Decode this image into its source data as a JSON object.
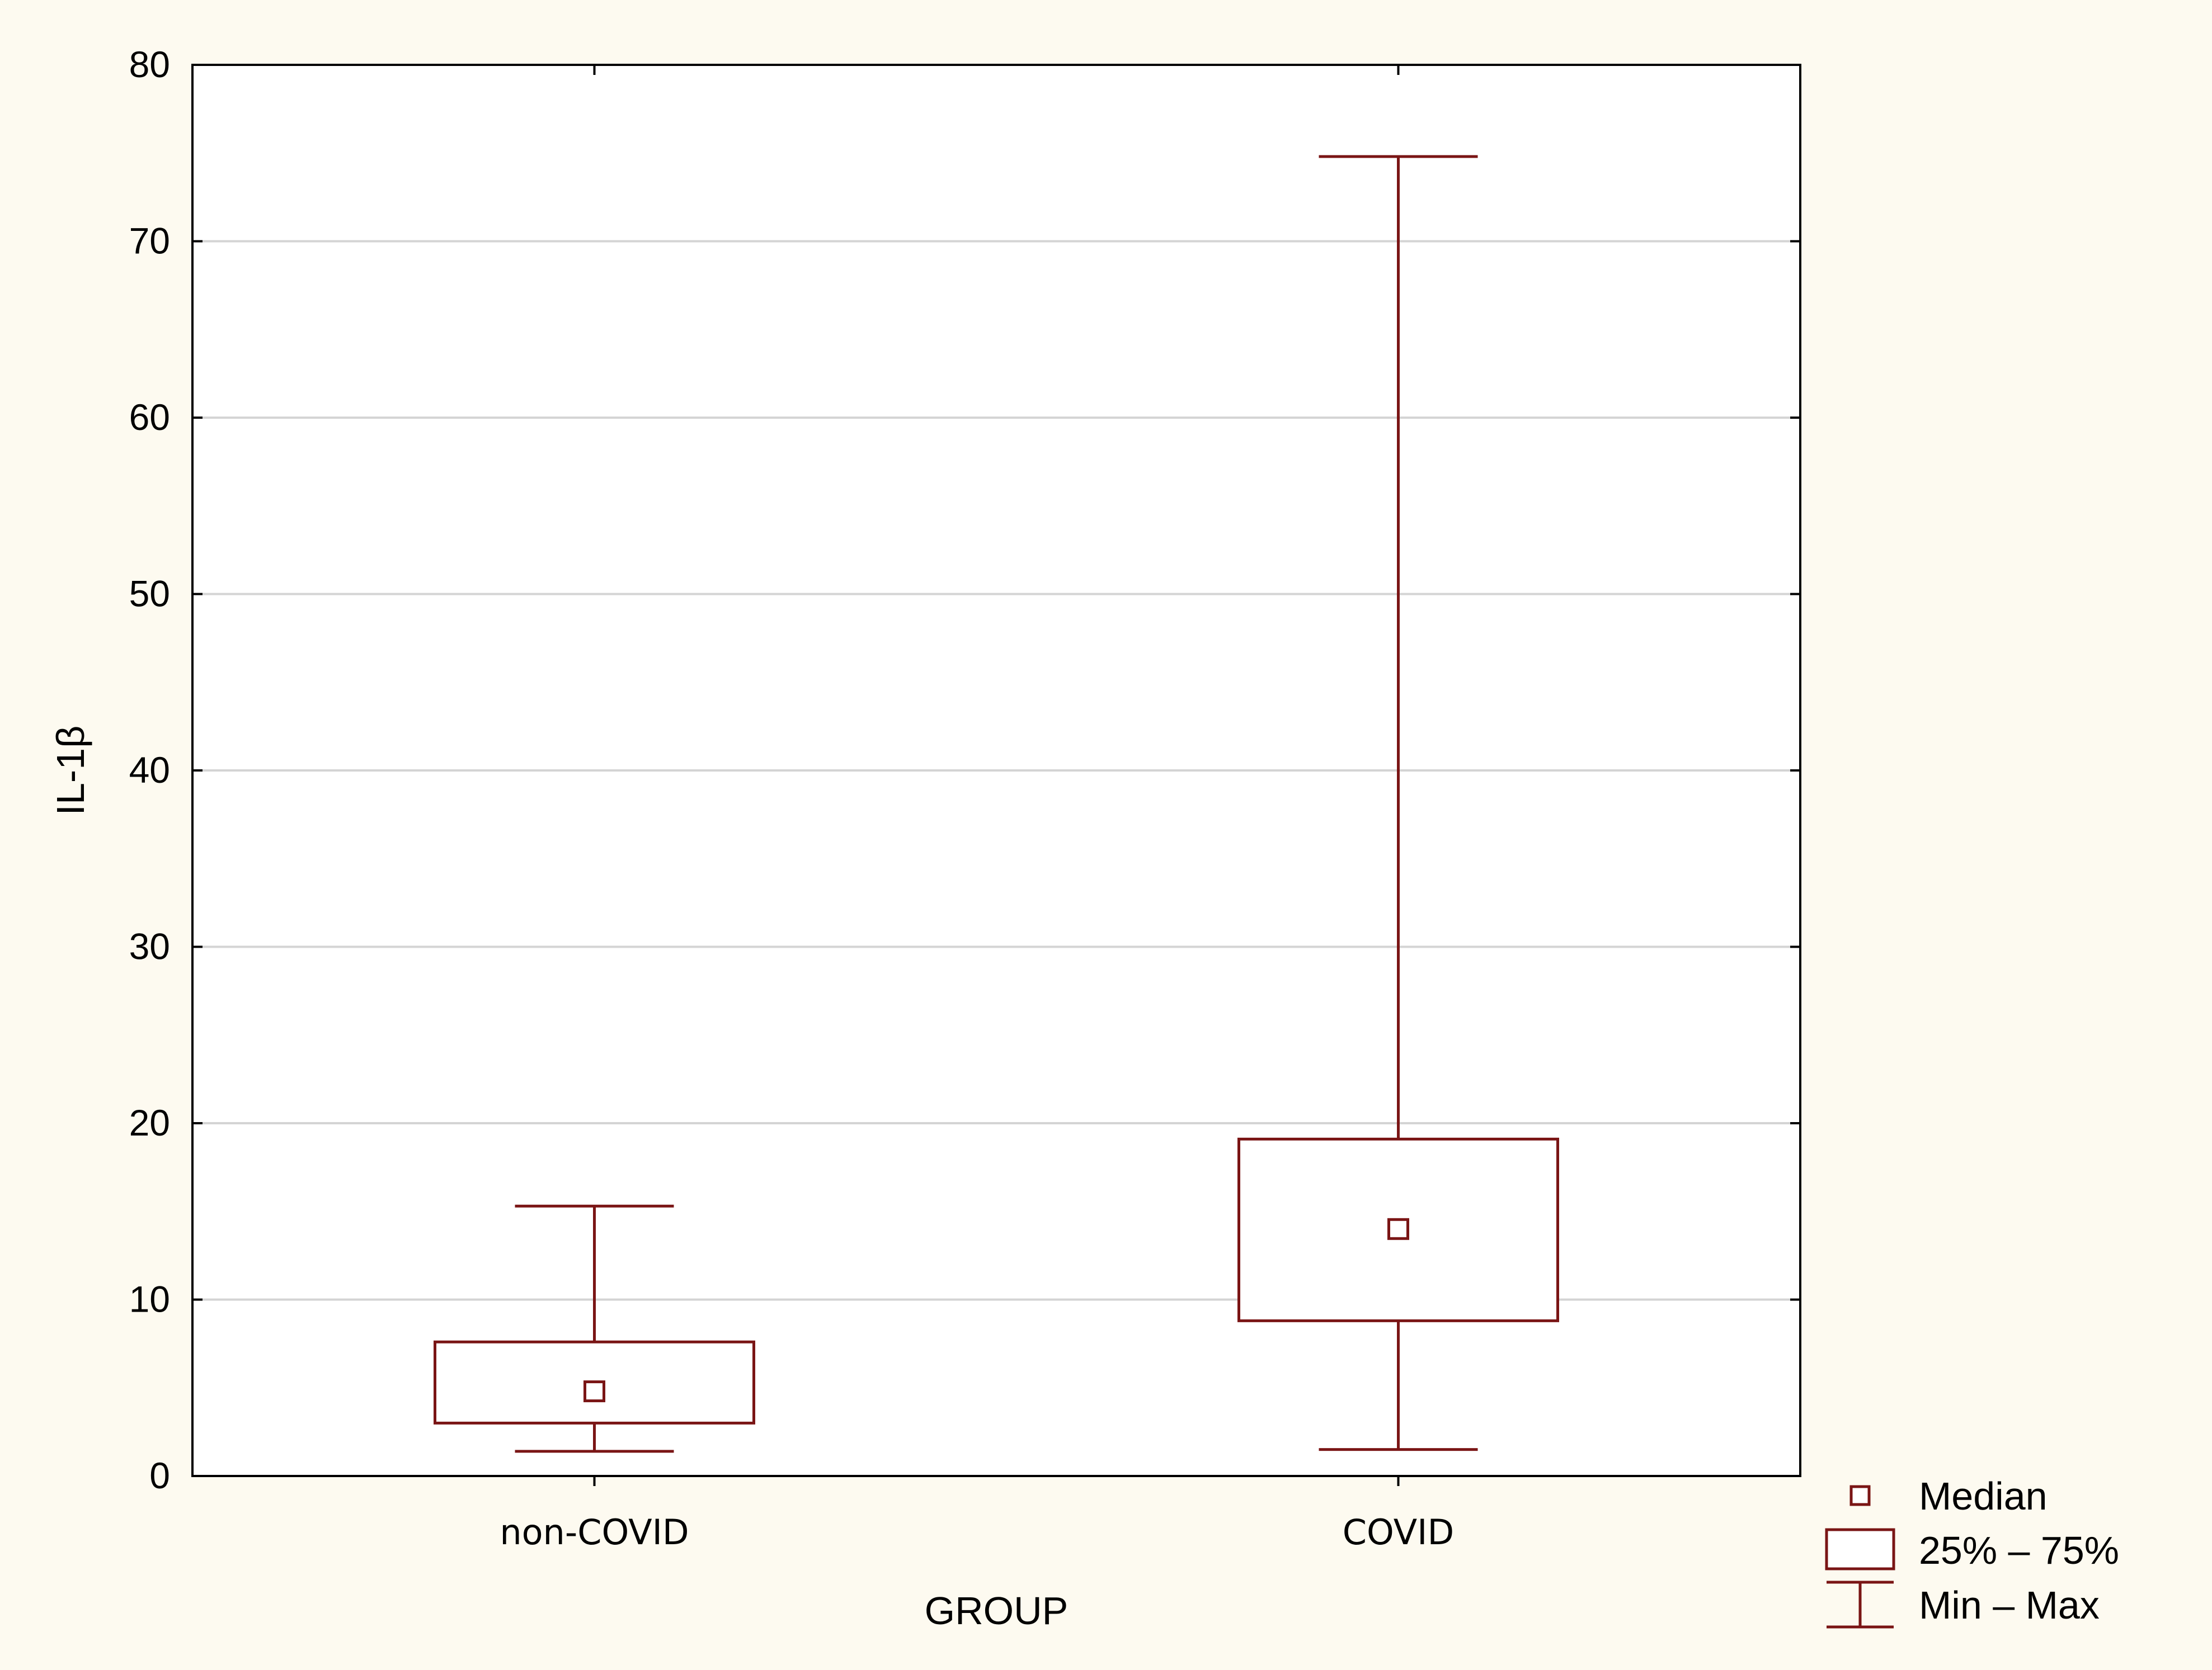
{
  "chart_data": {
    "type": "box",
    "xlabel": "GROUP",
    "ylabel": "IL-1β",
    "ylim": [
      0,
      80
    ],
    "yticks": [
      0,
      10,
      20,
      30,
      40,
      50,
      60,
      70,
      80
    ],
    "grid": true,
    "series_color": "#7a1515",
    "categories": [
      "non-COVID",
      "COVID"
    ],
    "boxes": [
      {
        "category": "non-COVID",
        "min": 1.4,
        "q1": 3.0,
        "median": 4.8,
        "q3": 7.6,
        "max": 15.3
      },
      {
        "category": "COVID",
        "min": 1.5,
        "q1": 8.8,
        "median": 14.0,
        "q3": 19.1,
        "max": 74.8
      }
    ],
    "legend": {
      "position": "bottom-right",
      "items": [
        {
          "symbol": "median-square",
          "label": "Median"
        },
        {
          "symbol": "box",
          "label": "25% – 75%"
        },
        {
          "symbol": "whisker",
          "label": "Min – Max"
        }
      ]
    }
  }
}
